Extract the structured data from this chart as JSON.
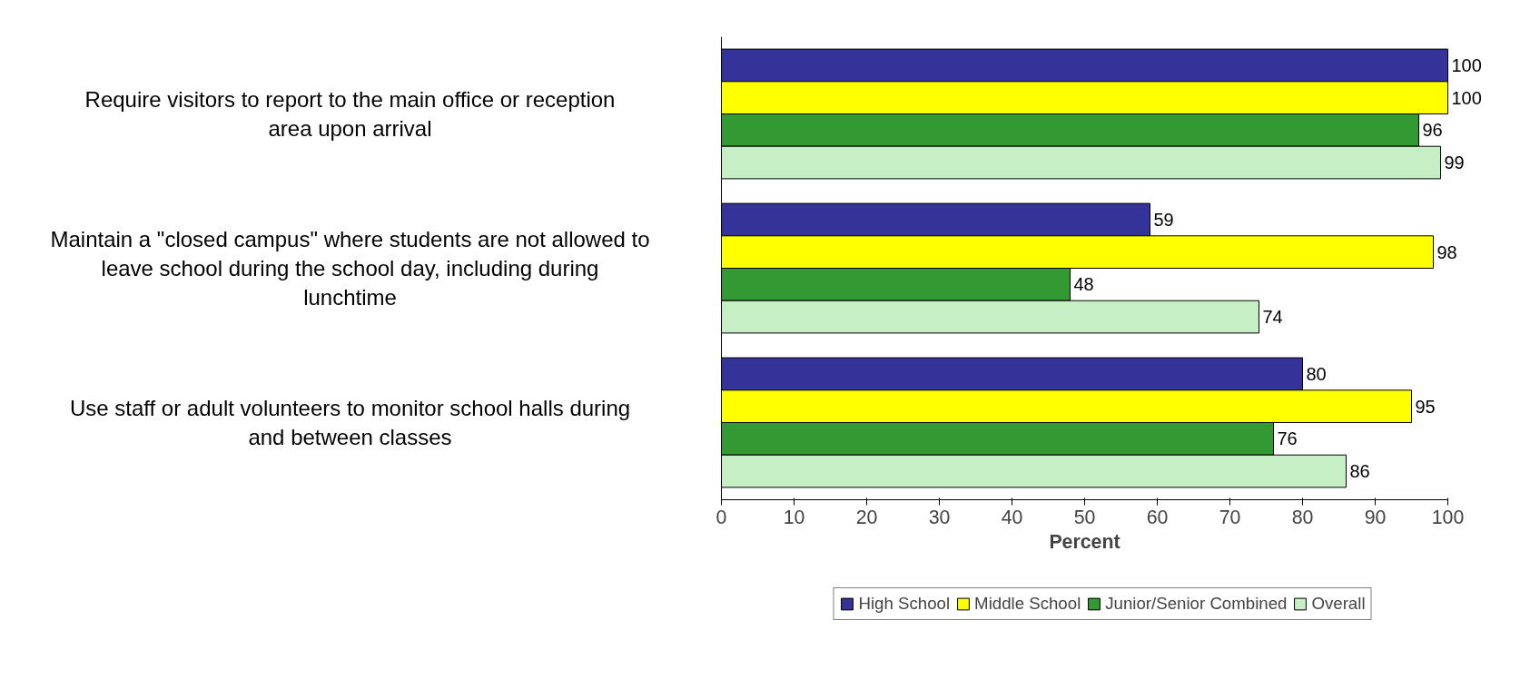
{
  "chart_data": {
    "type": "bar",
    "orientation": "horizontal",
    "xlabel": "Percent",
    "categories": [
      "Require visitors to report to the main office or reception area upon arrival",
      "Maintain a \"closed campus\" where students are not allowed to leave school during the school day, including during lunchtime",
      "Use staff or adult volunteers to monitor school halls during and between classes"
    ],
    "series": [
      {
        "name": "High School",
        "color": "#333399",
        "values": [
          100,
          59,
          80
        ]
      },
      {
        "name": "Middle School",
        "color": "#ffff00",
        "values": [
          100,
          98,
          95
        ]
      },
      {
        "name": "Junior/Senior Combined",
        "color": "#339933",
        "values": [
          96,
          48,
          76
        ]
      },
      {
        "name": "Overall",
        "color": "#c6efc6",
        "values": [
          99,
          74,
          86
        ]
      }
    ],
    "xlim": [
      0,
      100
    ],
    "xticks": [
      0,
      10,
      20,
      30,
      40,
      50,
      60,
      70,
      80,
      90,
      100
    ],
    "data_labels": true,
    "legend": "bottom",
    "grid": false
  }
}
